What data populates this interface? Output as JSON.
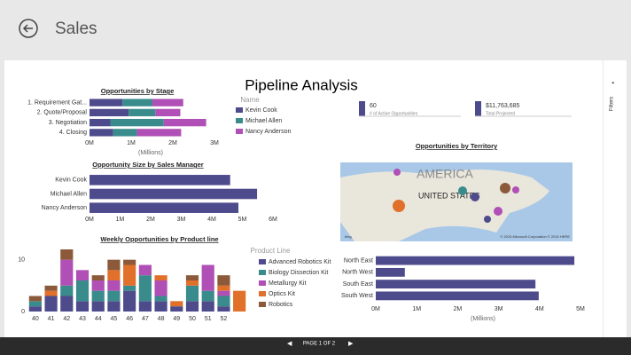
{
  "app_title": "Sales",
  "report_title": "Pipeline Analysis",
  "filters_label": "Filters",
  "pager": "PAGE 1 OF 2",
  "cards": [
    {
      "value": "60",
      "label": "# of Active Opportunities"
    },
    {
      "value": "$11,763,685",
      "label": "Total Projected"
    }
  ],
  "map": {
    "title": "Opportunities by Territory",
    "labels": [
      "AMERICA",
      "UNITED STATES"
    ],
    "credit": "© 2015 Microsoft Corporation  © 2015 HERE",
    "brand": "bing"
  },
  "chart_data": [
    {
      "type": "bar",
      "orientation": "horizontal",
      "stacked": true,
      "title": "Opportunities by Stage",
      "x_label": "(Millions)",
      "legend_title": "Name",
      "categories": [
        "1. Requirement Gat...",
        "2. Quote/Proposal",
        "3. Negotiation",
        "4. Closing"
      ],
      "series": [
        {
          "name": "Kevin Cook",
          "color": "#4e4b8c",
          "values": [
            0.79,
            0.94,
            0.5,
            0.57
          ]
        },
        {
          "name": "Michael Allen",
          "color": "#3a8c8c",
          "values": [
            0.72,
            0.64,
            1.28,
            0.57
          ]
        },
        {
          "name": "Nancy Anderson",
          "color": "#b04fb5",
          "values": [
            0.74,
            0.6,
            1.02,
            1.06
          ]
        }
      ],
      "xlim": [
        0,
        3
      ],
      "xticks": [
        {
          "value": 0,
          "label": "0M"
        },
        {
          "value": 1,
          "label": "1M"
        },
        {
          "value": 2,
          "label": "2M"
        },
        {
          "value": 3,
          "label": "3M"
        }
      ]
    },
    {
      "type": "bar",
      "orientation": "horizontal",
      "title": "Opportunity Size by Sales Manager",
      "color": "#4e4b8c",
      "categories": [
        "Kevin Cook",
        "Michael Allen",
        "Nancy Anderson"
      ],
      "values": [
        4.6,
        5.48,
        4.87
      ],
      "xlim": [
        0,
        6
      ],
      "xticks": [
        {
          "value": 0,
          "label": "0M"
        },
        {
          "value": 1,
          "label": "1M"
        },
        {
          "value": 2,
          "label": "2M"
        },
        {
          "value": 3,
          "label": "3M"
        },
        {
          "value": 4,
          "label": "4M"
        },
        {
          "value": 5,
          "label": "5M"
        },
        {
          "value": 6,
          "label": "6M"
        }
      ]
    },
    {
      "type": "bar",
      "orientation": "vertical",
      "stacked": true,
      "title": "Weekly Opportunities by Product line",
      "legend_title": "Product Line",
      "categories": [
        "40",
        "41",
        "42",
        "43",
        "44",
        "45",
        "46",
        "47",
        "48",
        "49",
        "50",
        "51",
        "52",
        null
      ],
      "series": [
        {
          "name": "Advanced Robotics Kit",
          "color": "#4e4b8c",
          "values": [
            1,
            3,
            3,
            2,
            2,
            2,
            4,
            2,
            2,
            1,
            2,
            2,
            1,
            0
          ]
        },
        {
          "name": "Biology Dissection Kit",
          "color": "#3a8c8c",
          "values": [
            1,
            0,
            2,
            4,
            2,
            2,
            1,
            5,
            1,
            0,
            3,
            2,
            2,
            0
          ]
        },
        {
          "name": "Metallurgy Kit",
          "color": "#b04fb5",
          "values": [
            0,
            0,
            5,
            2,
            2,
            2,
            0,
            2,
            3,
            0,
            0,
            5,
            1,
            0
          ]
        },
        {
          "name": "Optics Kit",
          "color": "#e0702a",
          "values": [
            0,
            1,
            0,
            0,
            0,
            2,
            4,
            0,
            1,
            1,
            1,
            0,
            1,
            4
          ]
        },
        {
          "name": "Robotics",
          "color": "#8c5a3a",
          "values": [
            1,
            1,
            2,
            0,
            1,
            2,
            1,
            0,
            0,
            0,
            1,
            0,
            2,
            0
          ]
        }
      ],
      "ylim": [
        0,
        12
      ],
      "yticks": [
        0,
        10
      ]
    },
    {
      "type": "bar",
      "orientation": "horizontal",
      "x_label": "(Millions)",
      "color": "#4e4b8c",
      "categories": [
        "North East",
        "North West",
        "South East",
        "South West"
      ],
      "values": [
        4.85,
        0.71,
        3.9,
        3.98
      ],
      "xlim": [
        0,
        5
      ],
      "xticks": [
        {
          "value": 0,
          "label": "0M"
        },
        {
          "value": 1,
          "label": "1M"
        },
        {
          "value": 2,
          "label": "2M"
        },
        {
          "value": 3,
          "label": "3M"
        },
        {
          "value": 4,
          "label": "4M"
        },
        {
          "value": 5,
          "label": "5M"
        }
      ]
    }
  ]
}
